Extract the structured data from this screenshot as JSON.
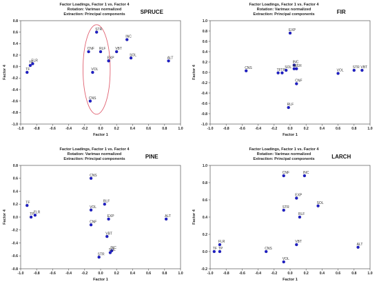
{
  "figure": {
    "title_lines": [
      "Factor Loadings, Factor 1 vs. Factor 4",
      "Rotation: Varimax normalized",
      "Extraction: Principal components"
    ]
  },
  "chart_data": [
    {
      "type": "scatter",
      "species": "SPRUCE",
      "xlabel": "Factor 1",
      "ylabel": "Factor 4",
      "xlim": [
        -1.0,
        1.0
      ],
      "ylim": [
        -1.0,
        0.8
      ],
      "xticks": [
        "-1.0",
        "-0.8",
        "-0.6",
        "-0.4",
        "-0.2",
        "0.0",
        "0.2",
        "0.4",
        "0.6",
        "0.8",
        "1.0"
      ],
      "yticks": [
        "0.8",
        "0.6",
        "0.4",
        "0.2",
        "0.0",
        "-0.2",
        "-0.4",
        "-0.6",
        "-0.8",
        "-1.0"
      ],
      "grid": false,
      "ellipse": {
        "cx": -0.05,
        "cy": -0.05,
        "rx": 0.17,
        "ry": 0.78,
        "color": "#e06070"
      },
      "points": [
        {
          "label": "STR",
          "x": -0.05,
          "y": 0.6
        },
        {
          "label": "INC",
          "x": 0.33,
          "y": 0.47
        },
        {
          "label": "CNF",
          "x": -0.15,
          "y": 0.26
        },
        {
          "label": "RLF",
          "x": 0.0,
          "y": 0.26
        },
        {
          "label": "VBT",
          "x": 0.2,
          "y": 0.26
        },
        {
          "label": "SOL",
          "x": 0.38,
          "y": 0.15
        },
        {
          "label": "ALT",
          "x": 0.85,
          "y": 0.1
        },
        {
          "label": "EXP",
          "x": 0.1,
          "y": 0.1
        },
        {
          "label": "FLR",
          "x": -0.85,
          "y": 0.05
        },
        {
          "label": "TP",
          "x": -0.88,
          "y": 0.02
        },
        {
          "label": "VOL",
          "x": -0.1,
          "y": -0.1
        },
        {
          "label": "TF",
          "x": -0.92,
          "y": -0.1
        },
        {
          "label": "CNS",
          "x": -0.13,
          "y": -0.6
        }
      ]
    },
    {
      "type": "scatter",
      "species": "FIR",
      "xlabel": "Factor 1",
      "ylabel": "Factor 4",
      "xlim": [
        -1.0,
        1.0
      ],
      "ylim": [
        -1.0,
        1.0
      ],
      "xticks": [
        "-1.0",
        "-0.8",
        "-0.6",
        "-0.4",
        "-0.2",
        "0.0",
        "0.2",
        "0.4",
        "0.6",
        "0.8",
        "1.0"
      ],
      "yticks": [
        "1.0",
        "0.8",
        "0.6",
        "0.4",
        "0.2",
        "0.0",
        "-0.2",
        "-0.4",
        "-0.6",
        "-0.8",
        "-1.0"
      ],
      "grid": false,
      "points": [
        {
          "label": "EXP",
          "x": 0.0,
          "y": 0.76
        },
        {
          "label": "INC",
          "x": 0.05,
          "y": 0.14
        },
        {
          "label": "ALT",
          "x": 0.05,
          "y": 0.07
        },
        {
          "label": "FLR",
          "x": 0.08,
          "y": 0.07
        },
        {
          "label": "SOL",
          "x": -0.05,
          "y": 0.04
        },
        {
          "label": "CNS",
          "x": -0.55,
          "y": 0.03
        },
        {
          "label": "TF",
          "x": -0.15,
          "y": -0.01
        },
        {
          "label": "TP",
          "x": -0.1,
          "y": -0.01
        },
        {
          "label": "STR",
          "x": 0.8,
          "y": 0.04
        },
        {
          "label": "VBT",
          "x": 0.9,
          "y": 0.04
        },
        {
          "label": "VOL",
          "x": 0.6,
          "y": -0.02
        },
        {
          "label": "CNF",
          "x": 0.08,
          "y": -0.22
        },
        {
          "label": "RLF",
          "x": -0.02,
          "y": -0.68
        }
      ]
    },
    {
      "type": "scatter",
      "species": "PINE",
      "xlabel": "Factor 1",
      "ylabel": "Factor 4",
      "xlim": [
        -1.0,
        1.0
      ],
      "ylim": [
        -0.8,
        0.8
      ],
      "xticks": [
        "-1.0",
        "-0.8",
        "-0.6",
        "-0.4",
        "-0.2",
        "0.0",
        "0.2",
        "0.4",
        "0.6",
        "0.8",
        "1.0"
      ],
      "yticks": [
        "0.8",
        "0.6",
        "0.4",
        "0.2",
        "0.0",
        "-0.2",
        "-0.4",
        "-0.6",
        "-0.8"
      ],
      "grid": false,
      "points": [
        {
          "label": "CNS",
          "x": -0.12,
          "y": 0.6
        },
        {
          "label": "TF",
          "x": -0.92,
          "y": 0.18
        },
        {
          "label": "RLF",
          "x": 0.05,
          "y": 0.2
        },
        {
          "label": "VOL",
          "x": -0.12,
          "y": 0.11
        },
        {
          "label": "FLR",
          "x": -0.82,
          "y": 0.03
        },
        {
          "label": "TP",
          "x": -0.87,
          "y": 0.0
        },
        {
          "label": "EXP",
          "x": 0.1,
          "y": -0.03
        },
        {
          "label": "ALT",
          "x": 0.82,
          "y": -0.03
        },
        {
          "label": "CNF",
          "x": -0.12,
          "y": -0.12
        },
        {
          "label": "VBT",
          "x": 0.08,
          "y": -0.3
        },
        {
          "label": "INC",
          "x": 0.14,
          "y": -0.52
        },
        {
          "label": "SOL",
          "x": 0.12,
          "y": -0.55
        },
        {
          "label": "STR",
          "x": -0.02,
          "y": -0.62
        }
      ]
    },
    {
      "type": "scatter",
      "species": "LARCH",
      "xlabel": "Factor 1",
      "ylabel": "Factor 4",
      "xlim": [
        -1.0,
        1.0
      ],
      "ylim": [
        -0.2,
        1.0
      ],
      "xticks": [
        "-1.0",
        "-0.8",
        "-0.6",
        "-0.4",
        "-0.2",
        "0.0",
        "0.2",
        "0.4",
        "0.6",
        "0.8",
        "1.0"
      ],
      "yticks": [
        "1.0",
        "0.8",
        "0.6",
        "0.4",
        "0.2",
        "0.0",
        "-0.2"
      ],
      "grid": false,
      "points": [
        {
          "label": "CNF",
          "x": -0.08,
          "y": 0.88
        },
        {
          "label": "INC",
          "x": 0.18,
          "y": 0.88
        },
        {
          "label": "EXP",
          "x": 0.08,
          "y": 0.62
        },
        {
          "label": "SOL",
          "x": 0.35,
          "y": 0.53
        },
        {
          "label": "STR",
          "x": -0.08,
          "y": 0.48
        },
        {
          "label": "RLF",
          "x": 0.12,
          "y": 0.4
        },
        {
          "label": "FLR",
          "x": -0.88,
          "y": 0.08
        },
        {
          "label": "VBT",
          "x": 0.08,
          "y": 0.08
        },
        {
          "label": "ALT",
          "x": 0.85,
          "y": 0.05
        },
        {
          "label": "TF",
          "x": -0.95,
          "y": 0.0
        },
        {
          "label": "TP",
          "x": -0.88,
          "y": 0.0
        },
        {
          "label": "CNS",
          "x": -0.3,
          "y": 0.0
        },
        {
          "label": "VOL",
          "x": -0.08,
          "y": -0.12
        }
      ]
    }
  ]
}
